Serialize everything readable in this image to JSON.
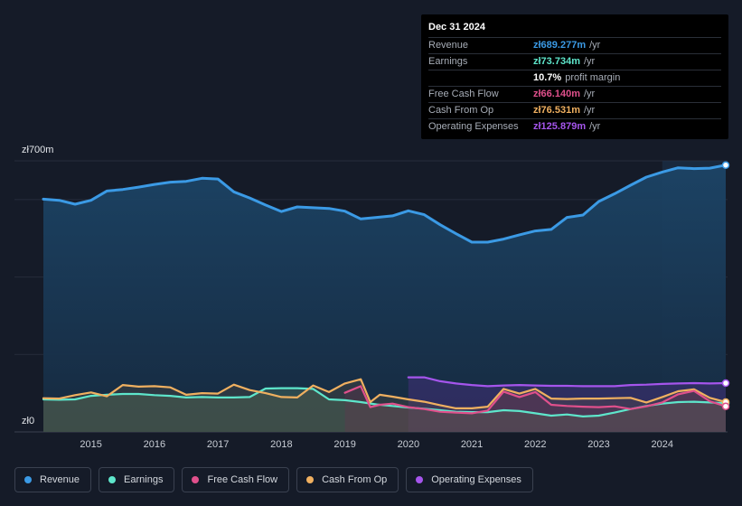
{
  "tooltip": {
    "date": "Dec 31 2024",
    "rows": [
      {
        "label": "Revenue",
        "value": "zł689.277m",
        "unit": "/yr",
        "color": "#3b9ae5"
      },
      {
        "label": "Earnings",
        "value": "zł73.734m",
        "unit": "/yr",
        "color": "#5ee6cb"
      },
      {
        "label": "",
        "value": "10.7%",
        "unit": "profit margin",
        "color": "#ffffff"
      },
      {
        "label": "Free Cash Flow",
        "value": "zł66.140m",
        "unit": "/yr",
        "color": "#e0508c"
      },
      {
        "label": "Cash From Op",
        "value": "zł76.531m",
        "unit": "/yr",
        "color": "#f0b060"
      },
      {
        "label": "Operating Expenses",
        "value": "zł125.879m",
        "unit": "/yr",
        "color": "#a555ec"
      }
    ]
  },
  "legend": [
    {
      "label": "Revenue",
      "color": "#3b9ae5"
    },
    {
      "label": "Earnings",
      "color": "#5ee6cb"
    },
    {
      "label": "Free Cash Flow",
      "color": "#e0508c"
    },
    {
      "label": "Cash From Op",
      "color": "#f0b060"
    },
    {
      "label": "Operating Expenses",
      "color": "#a555ec"
    }
  ],
  "chart_data": {
    "type": "area",
    "title": "",
    "y_top_label": "zł700m",
    "y_bottom_label": "zł0",
    "ylim": [
      0,
      700
    ],
    "xlim": [
      2014.25,
      2025.0
    ],
    "x_ticks": [
      "2015",
      "2016",
      "2017",
      "2018",
      "2019",
      "2020",
      "2021",
      "2022",
      "2023",
      "2024"
    ],
    "x_tick_values": [
      2015,
      2016,
      2017,
      2018,
      2019,
      2020,
      2021,
      2022,
      2023,
      2024
    ],
    "series": [
      {
        "name": "Revenue",
        "color": "#3b9ae5",
        "x": [
          2014.25,
          2014.5,
          2014.75,
          2015.0,
          2015.25,
          2015.5,
          2015.75,
          2016.0,
          2016.25,
          2016.5,
          2016.75,
          2017.0,
          2017.25,
          2017.5,
          2017.75,
          2018.0,
          2018.25,
          2018.5,
          2018.75,
          2019.0,
          2019.25,
          2019.5,
          2019.75,
          2020.0,
          2020.25,
          2020.5,
          2020.75,
          2021.0,
          2021.25,
          2021.5,
          2021.75,
          2022.0,
          2022.25,
          2022.5,
          2022.75,
          2023.0,
          2023.25,
          2023.5,
          2023.75,
          2024.0,
          2024.25,
          2024.5,
          2024.75,
          2025.0
        ],
        "values": [
          601,
          598,
          588,
          598,
          622,
          626,
          632,
          639,
          645,
          647,
          655,
          653,
          620,
          604,
          586,
          569,
          581,
          579,
          577,
          570,
          550,
          554,
          558,
          571,
          561,
          535,
          512,
          490,
          490,
          498,
          509,
          519,
          523,
          554,
          560,
          595,
          615,
          637,
          658,
          671,
          682,
          680,
          681,
          689
        ]
      },
      {
        "name": "Earnings",
        "color": "#5ee6cb",
        "x": [
          2014.25,
          2014.5,
          2014.75,
          2015.0,
          2015.25,
          2015.5,
          2015.75,
          2016.0,
          2016.25,
          2016.5,
          2016.75,
          2017.0,
          2017.25,
          2017.5,
          2017.75,
          2018.0,
          2018.25,
          2018.5,
          2018.75,
          2019.0,
          2019.25,
          2019.5,
          2019.75,
          2020.0,
          2020.25,
          2020.5,
          2020.75,
          2021.0,
          2021.25,
          2021.5,
          2021.75,
          2022.0,
          2022.25,
          2022.5,
          2022.75,
          2023.0,
          2023.25,
          2023.5,
          2023.75,
          2024.0,
          2024.25,
          2024.5,
          2024.75,
          2025.0
        ],
        "values": [
          84,
          83,
          84,
          93,
          96,
          98,
          98,
          95,
          93,
          89,
          90,
          89,
          89,
          90,
          112,
          113,
          113,
          111,
          84,
          82,
          77,
          71,
          67,
          63,
          60,
          56,
          52,
          51,
          51,
          56,
          54,
          48,
          42,
          45,
          40,
          42,
          50,
          59,
          67,
          73,
          77,
          78,
          76,
          74
        ]
      },
      {
        "name": "Free Cash Flow",
        "color": "#e0508c",
        "x": [
          2019.0,
          2019.25,
          2019.4,
          2019.55,
          2019.75,
          2020.0,
          2020.25,
          2020.5,
          2020.75,
          2021.0,
          2021.25,
          2021.5,
          2021.75,
          2022.0,
          2022.25,
          2022.5,
          2022.75,
          2023.0,
          2023.25,
          2023.5,
          2023.75,
          2024.0,
          2024.25,
          2024.5,
          2024.75,
          2025.0
        ],
        "values": [
          101,
          118,
          64,
          70,
          73,
          64,
          59,
          52,
          50,
          48,
          55,
          104,
          90,
          103,
          70,
          67,
          65,
          64,
          66,
          59,
          66,
          76,
          97,
          106,
          79,
          66
        ]
      },
      {
        "name": "Cash From Op",
        "color": "#f0b060",
        "x": [
          2014.25,
          2014.5,
          2014.75,
          2015.0,
          2015.25,
          2015.5,
          2015.75,
          2016.0,
          2016.25,
          2016.5,
          2016.75,
          2017.0,
          2017.25,
          2017.5,
          2017.75,
          2018.0,
          2018.25,
          2018.5,
          2018.75,
          2019.0,
          2019.25,
          2019.4,
          2019.55,
          2019.75,
          2020.0,
          2020.25,
          2020.5,
          2020.75,
          2021.0,
          2021.25,
          2021.5,
          2021.75,
          2022.0,
          2022.25,
          2022.5,
          2022.75,
          2023.0,
          2023.25,
          2023.5,
          2023.75,
          2024.0,
          2024.25,
          2024.5,
          2024.75,
          2025.0
        ],
        "values": [
          87,
          86,
          95,
          102,
          92,
          121,
          117,
          118,
          115,
          96,
          100,
          99,
          122,
          108,
          100,
          90,
          89,
          120,
          103,
          125,
          136,
          77,
          96,
          91,
          84,
          78,
          69,
          61,
          61,
          65,
          111,
          99,
          111,
          86,
          85,
          86,
          86,
          87,
          88,
          76,
          90,
          105,
          110,
          88,
          77
        ]
      },
      {
        "name": "Operating Expenses",
        "color": "#a555ec",
        "x": [
          2020.0,
          2020.25,
          2020.5,
          2020.75,
          2021.0,
          2021.25,
          2021.5,
          2021.75,
          2022.0,
          2022.25,
          2022.5,
          2022.75,
          2023.0,
          2023.25,
          2023.5,
          2023.75,
          2024.0,
          2024.25,
          2024.5,
          2024.75,
          2025.0
        ],
        "values": [
          141,
          141,
          131,
          125,
          121,
          118,
          120,
          121,
          120,
          119,
          119,
          118,
          118,
          118,
          121,
          122,
          124,
          125,
          126,
          125,
          126
        ]
      }
    ],
    "highlight_start": 2024.0
  }
}
